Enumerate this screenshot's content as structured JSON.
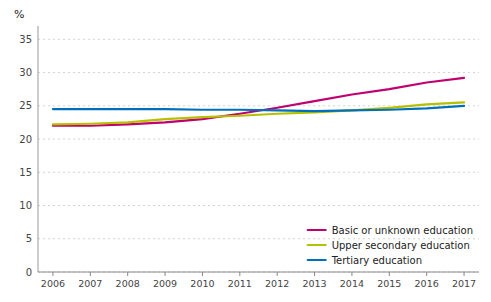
{
  "chart_data": {
    "type": "line",
    "ylabel": "%",
    "x": [
      2006,
      2007,
      2008,
      2009,
      2010,
      2011,
      2012,
      2013,
      2014,
      2015,
      2016,
      2017
    ],
    "series": [
      {
        "name": "Basic or unknown education",
        "color": "#c0006e",
        "values": [
          22.0,
          22.0,
          22.2,
          22.5,
          23.0,
          23.8,
          24.7,
          25.7,
          26.7,
          27.5,
          28.5,
          29.2
        ]
      },
      {
        "name": "Upper secondary education",
        "color": "#b5c000",
        "values": [
          22.2,
          22.3,
          22.5,
          23.0,
          23.3,
          23.5,
          23.8,
          24.0,
          24.3,
          24.7,
          25.2,
          25.5
        ]
      },
      {
        "name": "Tertiary education",
        "color": "#0070b8",
        "values": [
          24.5,
          24.5,
          24.5,
          24.5,
          24.4,
          24.4,
          24.3,
          24.2,
          24.3,
          24.4,
          24.6,
          25.0
        ]
      }
    ],
    "xlim": [
      2005.6,
      2017.4
    ],
    "xticks": [
      2006,
      2007,
      2008,
      2009,
      2010,
      2011,
      2012,
      2013,
      2014,
      2015,
      2016,
      2017
    ],
    "ylim": [
      0,
      37
    ],
    "yticks": [
      0,
      5,
      10,
      15,
      20,
      25,
      30,
      35
    ],
    "grid": true,
    "legend": "lower right"
  }
}
